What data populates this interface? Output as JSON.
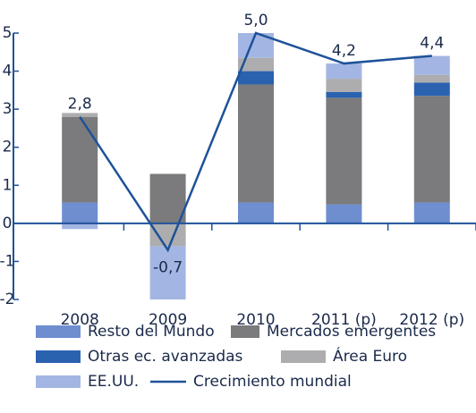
{
  "chart_data": {
    "type": "bar",
    "stacked": true,
    "categories": [
      "2008",
      "2009",
      "2010",
      "2011 (p)",
      "2012 (p)"
    ],
    "ylim": [
      -2,
      5
    ],
    "yticks": [
      -2,
      -1,
      0,
      1,
      2,
      3,
      4,
      5
    ],
    "series": [
      {
        "name": "Resto del Mundo",
        "color": "#6e8ed0",
        "values": [
          0.55,
          0,
          0.55,
          0.5,
          0.55
        ]
      },
      {
        "name": "Mercados emergentes",
        "color": "#7b7b7d",
        "values": [
          2.25,
          1.3,
          3.1,
          2.8,
          2.8
        ]
      },
      {
        "name": "Otras ec. avanzadas",
        "color": "#2a62b0",
        "values": [
          0,
          0,
          0.35,
          0.15,
          0.35
        ]
      },
      {
        "name": "Área Euro",
        "color": "#adadaf",
        "values": [
          0.1,
          -0.6,
          0.35,
          0.35,
          0.2
        ]
      },
      {
        "name": "EE.UU.",
        "color": "#a3b6e3",
        "values": [
          -0.15,
          -1.4,
          0.65,
          0.4,
          0.5
        ]
      },
      {
        "name": "Crecimiento mundial",
        "type": "line",
        "color": "#1e5299",
        "values": [
          2.8,
          -0.7,
          5.0,
          4.2,
          4.4
        ],
        "value_labels": [
          "2,8",
          "-0,7",
          "5,0",
          "4,2",
          "4,4"
        ]
      }
    ]
  }
}
